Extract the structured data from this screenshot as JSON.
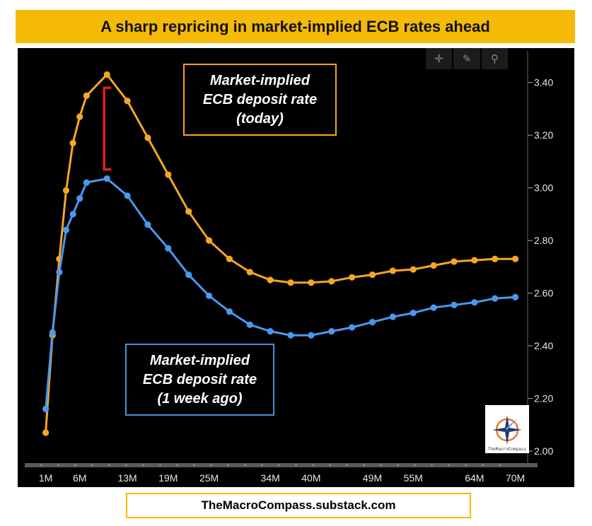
{
  "header": {
    "title": "A sharp repricing in market-implied ECB rates ahead"
  },
  "annotations": {
    "today": "Market-implied\nECB deposit rate\n(today)",
    "week_ago": "Market-implied\nECB deposit rate\n(1 week ago)"
  },
  "toolbar": {
    "icons": [
      "crosshair-icon",
      "pen-icon",
      "zoom-icon"
    ]
  },
  "logo": {
    "text": "TheMacroCompass"
  },
  "footer": {
    "text": "TheMacroCompass.substack.com"
  },
  "colors": {
    "today": "#f5a623",
    "week_ago": "#4a98ee",
    "bracket": "#e3201b",
    "title_bg": "#f5ba08"
  },
  "chart_data": {
    "type": "line",
    "xlabel": "",
    "ylabel": "",
    "x_tick_labels": [
      "1M",
      "6M",
      "13M",
      "19M",
      "25M",
      "34M",
      "40M",
      "49M",
      "55M",
      "64M",
      "70M"
    ],
    "x_tick_positions": [
      1,
      6,
      13,
      19,
      25,
      34,
      40,
      49,
      55,
      64,
      70
    ],
    "y_ticks": [
      "2.00",
      "2.20",
      "2.40",
      "2.60",
      "2.80",
      "3.00",
      "3.20",
      "3.40"
    ],
    "xlim": [
      0,
      71.5
    ],
    "ylim": [
      1.96,
      3.52
    ],
    "y_axis_side": "right",
    "series": [
      {
        "key": "today",
        "x": [
          1,
          2,
          3,
          4,
          5,
          6,
          7,
          10,
          13,
          16,
          19,
          22,
          25,
          28,
          31,
          34,
          37,
          40,
          43,
          46,
          49,
          52,
          55,
          58,
          61,
          64,
          67,
          70
        ],
        "values": [
          2.07,
          2.44,
          2.73,
          2.99,
          3.17,
          3.27,
          3.35,
          3.43,
          3.33,
          3.19,
          3.05,
          2.91,
          2.8,
          2.73,
          2.68,
          2.65,
          2.64,
          2.64,
          2.645,
          2.66,
          2.67,
          2.685,
          2.69,
          2.705,
          2.72,
          2.725,
          2.73,
          2.73
        ]
      },
      {
        "key": "week_ago",
        "x": [
          1,
          2,
          3,
          4,
          5,
          6,
          7,
          10,
          13,
          16,
          19,
          22,
          25,
          28,
          31,
          34,
          37,
          40,
          43,
          46,
          49,
          52,
          55,
          58,
          61,
          64,
          67,
          70
        ],
        "values": [
          2.16,
          2.45,
          2.68,
          2.84,
          2.9,
          2.96,
          3.02,
          3.035,
          2.97,
          2.86,
          2.77,
          2.67,
          2.59,
          2.53,
          2.48,
          2.455,
          2.44,
          2.44,
          2.455,
          2.47,
          2.49,
          2.51,
          2.525,
          2.545,
          2.555,
          2.565,
          2.58,
          2.585
        ]
      }
    ],
    "bracket": {
      "x": 10,
      "y_top": 3.38,
      "y_bottom": 3.07
    }
  }
}
